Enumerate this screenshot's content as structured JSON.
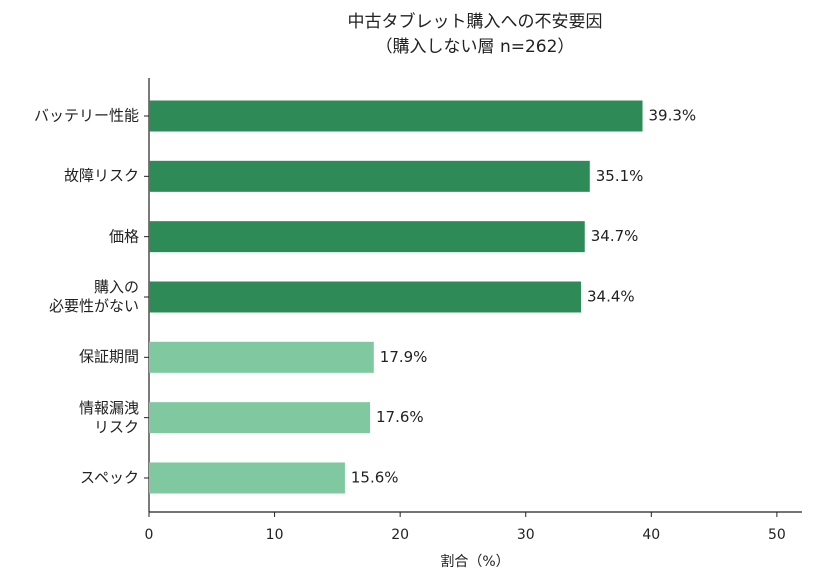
{
  "chart_data": {
    "type": "barh",
    "title": "中古タブレット購入への不安要因",
    "subtitle": "（購入しない層 n=262）",
    "categories": [
      "バッテリー性能",
      "故障リスク",
      "価格",
      "購入の\n必要性がない",
      "保証期間",
      "情報漏洩\nリスク",
      "スペック"
    ],
    "values": [
      39.3,
      35.1,
      34.7,
      34.4,
      17.9,
      17.6,
      15.6
    ],
    "value_labels": [
      "39.3%",
      "35.1%",
      "34.7%",
      "34.4%",
      "17.9%",
      "17.6%",
      "15.6%"
    ],
    "colors": [
      "#2e8b57",
      "#2e8b57",
      "#2e8b57",
      "#2e8b57",
      "#7fc8a0",
      "#7fc8a0",
      "#7fc8a0"
    ],
    "xlabel": "割合（%）",
    "xlim": [
      0,
      52
    ],
    "xticks": [
      0,
      10,
      20,
      30,
      40,
      50
    ]
  }
}
